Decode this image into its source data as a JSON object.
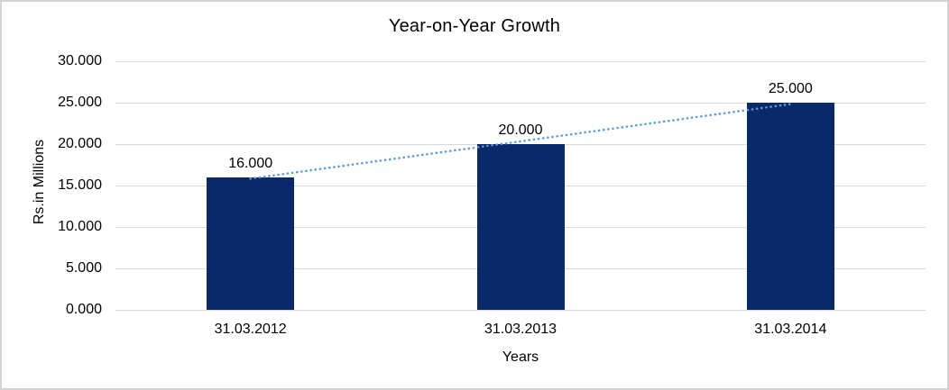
{
  "chart_data": {
    "type": "bar",
    "title": "Year-on-Year Growth",
    "xlabel": "Years",
    "ylabel": "Rs.in Millions",
    "categories": [
      "31.03.2012",
      "31.03.2013",
      "31.03.2014"
    ],
    "values": [
      16000,
      20000,
      25000
    ],
    "value_labels": [
      "16.000",
      "20.000",
      "25.000"
    ],
    "ylim": [
      0,
      30000
    ],
    "yticks": [
      {
        "value": 0,
        "label": "0.000"
      },
      {
        "value": 5000,
        "label": "5.000"
      },
      {
        "value": 10000,
        "label": "10.000"
      },
      {
        "value": 15000,
        "label": "15.000"
      },
      {
        "value": 20000,
        "label": "20.000"
      },
      {
        "value": 25000,
        "label": "25.000"
      },
      {
        "value": 30000,
        "label": "30.000"
      }
    ],
    "grid": true,
    "legend": false,
    "trendline": {
      "type": "linear",
      "style": "dotted"
    },
    "colors": {
      "bar": "#0a2968",
      "trendline": "#5b9bd5",
      "gridline": "#d9d9d9",
      "text": "#000000",
      "background": "#ffffff",
      "border": "#d3d3d3"
    }
  }
}
